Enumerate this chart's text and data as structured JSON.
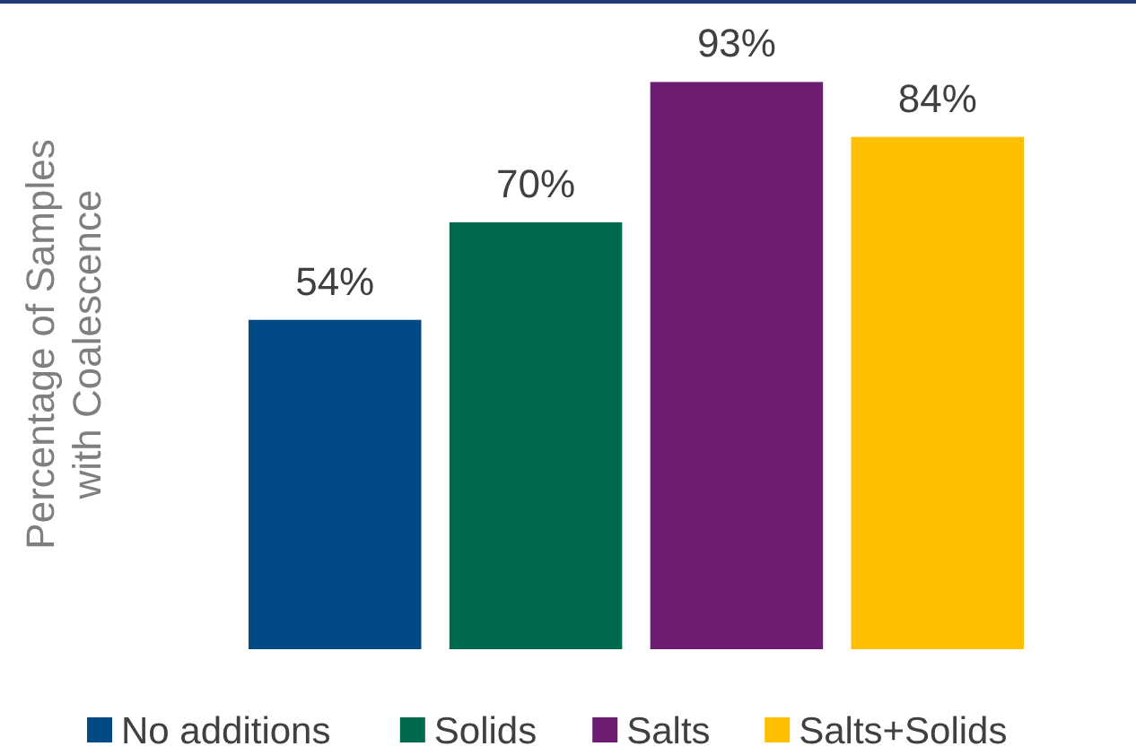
{
  "chart_data": {
    "type": "bar",
    "ylabel": "Percentage of Samples\nwith Coalescence",
    "categories": [
      null
    ],
    "legend": "bottom",
    "series": [
      {
        "name": "No additions",
        "color": "#004a86",
        "values": [
          54
        ],
        "value_labels": [
          "54%"
        ]
      },
      {
        "name": "Solids",
        "color": "#006a4e",
        "values": [
          70
        ],
        "value_labels": [
          "70%"
        ]
      },
      {
        "name": "Salts",
        "color": "#6c1d6f",
        "values": [
          93
        ],
        "value_labels": [
          "93%"
        ]
      },
      {
        "name": "Salts+Solids",
        "color": "#fdbf00",
        "values": [
          84
        ],
        "value_labels": [
          "84%"
        ]
      }
    ]
  }
}
